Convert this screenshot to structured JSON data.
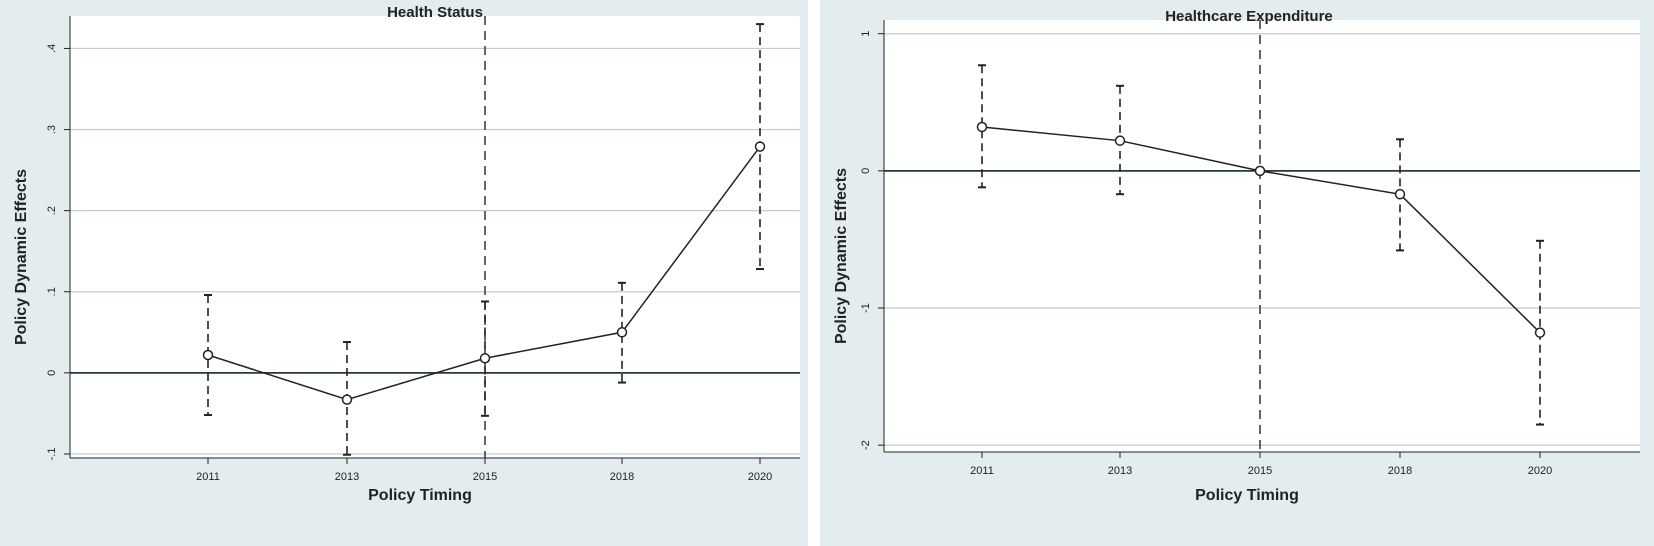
{
  "chart_data": [
    {
      "type": "line",
      "title": "Health Status",
      "xlabel": "Policy Timing",
      "ylabel": "Policy Dynamic Effects",
      "categories": [
        "2011",
        "2013",
        "2015",
        "2018",
        "2020"
      ],
      "y_ticks": [
        "-.1",
        "0",
        ".1",
        ".2",
        ".3",
        ".4"
      ],
      "ylim": [
        -0.105,
        0.44
      ],
      "reference_x": "2015",
      "reference_y": 0,
      "grid": "horizontal",
      "legend": "none",
      "series": [
        {
          "values": [
            0.022,
            -0.033,
            0.018,
            0.05,
            0.279
          ],
          "ci_low": [
            -0.052,
            -0.101,
            -0.053,
            -0.012,
            0.128
          ],
          "ci_high": [
            0.096,
            0.038,
            0.088,
            0.111,
            0.43
          ]
        }
      ]
    },
    {
      "type": "line",
      "title": "Healthcare Expenditure",
      "xlabel": "Policy Timing",
      "ylabel": "Policy Dynamic Effects",
      "categories": [
        "2011",
        "2013",
        "2015",
        "2018",
        "2020"
      ],
      "y_ticks": [
        "-2",
        "-1",
        "0",
        "1"
      ],
      "ylim": [
        -2.05,
        1.1
      ],
      "reference_x": "2015",
      "reference_y": 0,
      "grid": "horizontal",
      "legend": "none",
      "series": [
        {
          "values": [
            0.32,
            0.22,
            0.0,
            -0.17,
            -1.18
          ],
          "ci_low": [
            -0.12,
            -0.17,
            0.0,
            -0.58,
            -1.85
          ],
          "ci_high": [
            0.77,
            0.62,
            0.0,
            0.23,
            -0.51
          ]
        }
      ]
    }
  ],
  "colors": {
    "panel_background": "#e3ecef",
    "plot_background": "#ffffff",
    "gridline": "#b9cfd6",
    "zero_line": "#243a40",
    "series": "#222222"
  }
}
